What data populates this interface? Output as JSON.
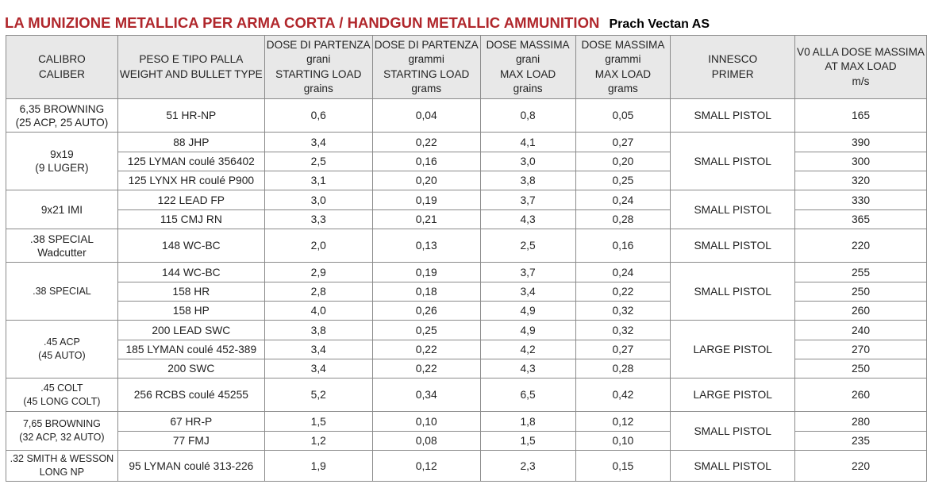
{
  "title": "LA MUNIZIONE METALLICA PER ARMA CORTA / HANDGUN METALLIC AMMUNITION",
  "subtitle": "Prach Vectan AS",
  "headers": [
    [
      "CALIBRO",
      "CALIBER"
    ],
    [
      "PESO E TIPO PALLA",
      "WEIGHT AND BULLET TYPE"
    ],
    [
      "DOSE DI PARTENZA",
      "grani",
      "STARTING LOAD",
      "grains"
    ],
    [
      "DOSE DI PARTENZA",
      "grammi",
      "STARTING LOAD",
      "grams"
    ],
    [
      "DOSE MASSIMA",
      "grani",
      "MAX LOAD",
      "grains"
    ],
    [
      "DOSE MASSIMA",
      "grammi",
      "MAX LOAD",
      "grams"
    ],
    [
      "INNESCO",
      "PRIMER"
    ],
    [
      "V0 ALLA DOSE MASSIMA",
      "AT MAX LOAD",
      "m/s"
    ]
  ],
  "groups": [
    {
      "caliber": [
        "6,35 BROWNING",
        "(25 ACP, 25 AUTO)"
      ],
      "primer": "SMALL PISTOL",
      "rows": [
        [
          "51 HR-NP",
          "0,6",
          "0,04",
          "0,8",
          "0,05",
          "165"
        ]
      ]
    },
    {
      "caliber": [
        "9x19",
        "(9 LUGER)"
      ],
      "primer": "SMALL PISTOL",
      "rows": [
        [
          "88 JHP",
          "3,4",
          "0,22",
          "4,1",
          "0,27",
          "390"
        ],
        [
          "125 LYMAN coulé 356402",
          "2,5",
          "0,16",
          "3,0",
          "0,20",
          "300"
        ],
        [
          "125 LYNX HR coulé P900",
          "3,1",
          "0,20",
          "3,8",
          "0,25",
          "320"
        ]
      ]
    },
    {
      "caliber": [
        "9x21 IMI"
      ],
      "primer": "SMALL PISTOL",
      "rows": [
        [
          "122 LEAD FP",
          "3,0",
          "0,19",
          "3,7",
          "0,24",
          "330"
        ],
        [
          "115 CMJ RN",
          "3,3",
          "0,21",
          "4,3",
          "0,28",
          "365"
        ]
      ]
    },
    {
      "caliber": [
        ".38 SPECIAL",
        "Wadcutter"
      ],
      "primer": "SMALL PISTOL",
      "rows": [
        [
          "148 WC-BC",
          "2,0",
          "0,13",
          "2,5",
          "0,16",
          "220"
        ]
      ]
    },
    {
      "caliber": [
        ".38 SPECIAL"
      ],
      "primer": "SMALL PISTOL",
      "small": true,
      "rows": [
        [
          "144 WC-BC",
          "2,9",
          "0,19",
          "3,7",
          "0,24",
          "255"
        ],
        [
          "158 HR",
          "2,8",
          "0,18",
          "3,4",
          "0,22",
          "250"
        ],
        [
          "158 HP",
          "4,0",
          "0,26",
          "4,9",
          "0,32",
          "260"
        ]
      ]
    },
    {
      "caliber": [
        ".45 ACP",
        "(45 AUTO)"
      ],
      "primer": "LARGE PISTOL",
      "small": true,
      "rows": [
        [
          "200 LEAD SWC",
          "3,8",
          "0,25",
          "4,9",
          "0,32",
          "240"
        ],
        [
          "185 LYMAN coulé 452-389",
          "3,4",
          "0,22",
          "4,2",
          "0,27",
          "270"
        ],
        [
          "200 SWC",
          "3,4",
          "0,22",
          "4,3",
          "0,28",
          "250"
        ]
      ]
    },
    {
      "caliber": [
        ".45 COLT",
        "(45 LONG COLT)"
      ],
      "primer": "LARGE PISTOL",
      "small": true,
      "rows": [
        [
          "256 RCBS coulé 45255",
          "5,2",
          "0,34",
          "6,5",
          "0,42",
          "260"
        ]
      ]
    },
    {
      "caliber": [
        "7,65 BROWNING",
        "(32 ACP, 32 AUTO)"
      ],
      "primer": "SMALL PISTOL",
      "small": true,
      "rows": [
        [
          "67 HR-P",
          "1,5",
          "0,10",
          "1,8",
          "0,12",
          "280"
        ],
        [
          "77 FMJ",
          "1,2",
          "0,08",
          "1,5",
          "0,10",
          "235"
        ]
      ]
    },
    {
      "caliber": [
        ".32 SMITH & WESSON",
        "LONG NP"
      ],
      "primer": "SMALL PISTOL",
      "small": true,
      "rows": [
        [
          "95 LYMAN coulé 313-226",
          "1,9",
          "0,12",
          "2,3",
          "0,15",
          "220"
        ]
      ]
    }
  ]
}
